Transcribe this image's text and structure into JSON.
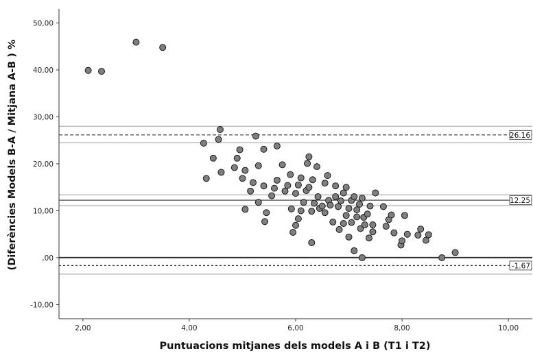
{
  "chart_data": {
    "type": "scatter",
    "xlabel": "Puntuacions mitjanes dels models A i B (T1 i T2)",
    "ylabel": "(Diferències Models B-A / Mitjana A-B ) %",
    "xlim": [
      1.55,
      10.45
    ],
    "ylim": [
      -13.0,
      53.0
    ],
    "x_ticks": [
      2,
      4,
      6,
      8,
      10
    ],
    "x_tick_labels": [
      "2,00",
      "4,00",
      "6,00",
      "8,00",
      "10,00"
    ],
    "y_ticks": [
      -10,
      0,
      10,
      20,
      30,
      40,
      50
    ],
    "y_tick_labels": [
      "-10,00",
      ",00",
      "10,00",
      "20,00",
      "30,00",
      "40,00",
      "50,00"
    ],
    "grid": false,
    "point_color": "#7f7f7f",
    "reference_lines": [
      {
        "value": 26.16,
        "label": "26.16",
        "style": "dashed"
      },
      {
        "value": 12.25,
        "label": "12.25",
        "style": "solid"
      },
      {
        "value": -1.67,
        "label": "-1.67",
        "style": "dotted"
      },
      {
        "value": 0,
        "label": "",
        "style": "solid-dark"
      }
    ],
    "confidence_bands": [
      {
        "value": 28.0
      },
      {
        "value": 24.5
      },
      {
        "value": 13.4
      },
      {
        "value": 11.1
      },
      {
        "value": 0.1
      },
      {
        "value": -3.5
      }
    ],
    "points": [
      {
        "x": 2.1,
        "y": 39.9
      },
      {
        "x": 2.35,
        "y": 39.7
      },
      {
        "x": 3.0,
        "y": 45.9
      },
      {
        "x": 3.5,
        "y": 44.8
      },
      {
        "x": 4.27,
        "y": 24.4
      },
      {
        "x": 4.32,
        "y": 16.9
      },
      {
        "x": 4.45,
        "y": 21.2
      },
      {
        "x": 4.55,
        "y": 25.2
      },
      {
        "x": 4.58,
        "y": 27.3
      },
      {
        "x": 4.6,
        "y": 18.2
      },
      {
        "x": 4.85,
        "y": 19.2
      },
      {
        "x": 4.9,
        "y": 21.2
      },
      {
        "x": 4.95,
        "y": 23.0
      },
      {
        "x": 5.0,
        "y": 16.9
      },
      {
        "x": 5.05,
        "y": 18.6
      },
      {
        "x": 5.05,
        "y": 10.3
      },
      {
        "x": 5.15,
        "y": 14.2
      },
      {
        "x": 5.2,
        "y": 16.0
      },
      {
        "x": 5.25,
        "y": 25.9
      },
      {
        "x": 5.3,
        "y": 19.6
      },
      {
        "x": 5.3,
        "y": 11.8
      },
      {
        "x": 5.4,
        "y": 23.1
      },
      {
        "x": 5.4,
        "y": 15.3
      },
      {
        "x": 5.42,
        "y": 7.7
      },
      {
        "x": 5.45,
        "y": 9.6
      },
      {
        "x": 5.55,
        "y": 13.2
      },
      {
        "x": 5.6,
        "y": 14.8
      },
      {
        "x": 5.65,
        "y": 23.8
      },
      {
        "x": 5.65,
        "y": 16.5
      },
      {
        "x": 5.75,
        "y": 19.8
      },
      {
        "x": 5.8,
        "y": 14.2
      },
      {
        "x": 5.85,
        "y": 15.4
      },
      {
        "x": 5.9,
        "y": 17.7
      },
      {
        "x": 5.92,
        "y": 10.4
      },
      {
        "x": 5.95,
        "y": 5.4
      },
      {
        "x": 6.0,
        "y": 6.9
      },
      {
        "x": 6.0,
        "y": 13.7
      },
      {
        "x": 6.05,
        "y": 8.3
      },
      {
        "x": 6.05,
        "y": 15.5
      },
      {
        "x": 6.1,
        "y": 17.0
      },
      {
        "x": 6.1,
        "y": 10.0
      },
      {
        "x": 6.15,
        "y": 11.8
      },
      {
        "x": 6.2,
        "y": 14.3
      },
      {
        "x": 6.22,
        "y": 20.1
      },
      {
        "x": 6.25,
        "y": 21.5
      },
      {
        "x": 6.25,
        "y": 15.0
      },
      {
        "x": 6.3,
        "y": 9.9
      },
      {
        "x": 6.3,
        "y": 3.2
      },
      {
        "x": 6.32,
        "y": 16.6
      },
      {
        "x": 6.35,
        "y": 11.6
      },
      {
        "x": 6.4,
        "y": 19.4
      },
      {
        "x": 6.42,
        "y": 13.0
      },
      {
        "x": 6.45,
        "y": 10.5
      },
      {
        "x": 6.5,
        "y": 11.0
      },
      {
        "x": 6.55,
        "y": 15.9
      },
      {
        "x": 6.55,
        "y": 9.6
      },
      {
        "x": 6.6,
        "y": 17.5
      },
      {
        "x": 6.62,
        "y": 12.2
      },
      {
        "x": 6.65,
        "y": 11.2
      },
      {
        "x": 6.7,
        "y": 7.6
      },
      {
        "x": 6.75,
        "y": 15.3
      },
      {
        "x": 6.75,
        "y": 13.0
      },
      {
        "x": 6.8,
        "y": 10.9
      },
      {
        "x": 6.82,
        "y": 6.0
      },
      {
        "x": 6.85,
        "y": 12.1
      },
      {
        "x": 6.9,
        "y": 13.8
      },
      {
        "x": 6.9,
        "y": 7.3
      },
      {
        "x": 6.95,
        "y": 15.0
      },
      {
        "x": 6.95,
        "y": 9.0
      },
      {
        "x": 7.0,
        "y": 10.5
      },
      {
        "x": 7.0,
        "y": 4.4
      },
      {
        "x": 7.05,
        "y": 12.2
      },
      {
        "x": 7.05,
        "y": 7.5
      },
      {
        "x": 7.1,
        "y": 13.0
      },
      {
        "x": 7.1,
        "y": 1.5
      },
      {
        "x": 7.15,
        "y": 8.7
      },
      {
        "x": 7.15,
        "y": 10.2
      },
      {
        "x": 7.2,
        "y": 11.4
      },
      {
        "x": 7.22,
        "y": 6.2
      },
      {
        "x": 7.25,
        "y": 0.0
      },
      {
        "x": 7.25,
        "y": 12.7
      },
      {
        "x": 7.28,
        "y": 8.6
      },
      {
        "x": 7.3,
        "y": 7.0
      },
      {
        "x": 7.35,
        "y": 9.3
      },
      {
        "x": 7.38,
        "y": 4.2
      },
      {
        "x": 7.4,
        "y": 11.0
      },
      {
        "x": 7.45,
        "y": 5.5
      },
      {
        "x": 7.45,
        "y": 7.0
      },
      {
        "x": 7.5,
        "y": 13.8
      },
      {
        "x": 7.65,
        "y": 10.9
      },
      {
        "x": 7.7,
        "y": 6.7
      },
      {
        "x": 7.75,
        "y": 8.1
      },
      {
        "x": 7.8,
        "y": 9.1
      },
      {
        "x": 7.85,
        "y": 5.3
      },
      {
        "x": 7.98,
        "y": 2.7
      },
      {
        "x": 8.0,
        "y": 3.6
      },
      {
        "x": 8.05,
        "y": 9.0
      },
      {
        "x": 8.1,
        "y": 5.0
      },
      {
        "x": 8.3,
        "y": 4.8
      },
      {
        "x": 8.35,
        "y": 6.1
      },
      {
        "x": 8.45,
        "y": 3.7
      },
      {
        "x": 8.5,
        "y": 4.9
      },
      {
        "x": 8.75,
        "y": 0.0
      },
      {
        "x": 9.0,
        "y": 1.1
      }
    ]
  }
}
